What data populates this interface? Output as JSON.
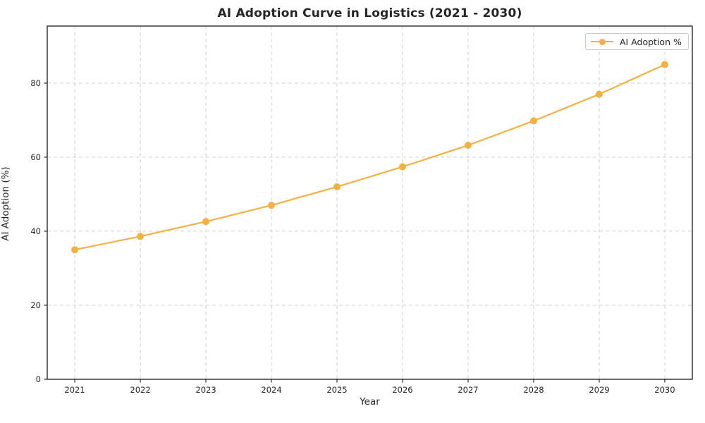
{
  "figure": {
    "title": "AI Adoption Curve in Logistics (2021 - 2030)",
    "xlabel": "Year",
    "ylabel": "AI Adoption (%)"
  },
  "legend": {
    "label": "AI Adoption %"
  },
  "colors": {
    "series": "#F5B042",
    "grid": "#cfcfcf",
    "frame": "#1a1a1a",
    "tick": "#262626",
    "text": "#262626",
    "background": "#ffffff"
  },
  "chart_data": {
    "type": "line",
    "title": "AI Adoption Curve in Logistics (2021 - 2030)",
    "xlabel": "Year",
    "ylabel": "AI Adoption (%)",
    "x": [
      2021,
      2022,
      2023,
      2024,
      2025,
      2026,
      2027,
      2028,
      2029,
      2030
    ],
    "series": [
      {
        "name": "AI Adoption %",
        "values": [
          35.0,
          38.6,
          42.6,
          47.0,
          52.0,
          57.4,
          63.2,
          69.8,
          77.0,
          85.0
        ]
      }
    ],
    "xticks": [
      2021,
      2022,
      2023,
      2024,
      2025,
      2026,
      2027,
      2028,
      2029,
      2030
    ],
    "yticks": [
      0,
      20,
      40,
      60,
      80
    ],
    "xlim": [
      2020.58,
      2030.42
    ],
    "ylim": [
      0,
      95.4
    ],
    "grid": true,
    "grid_style": "dashed",
    "marker": "circle",
    "legend_position": "upper right"
  }
}
